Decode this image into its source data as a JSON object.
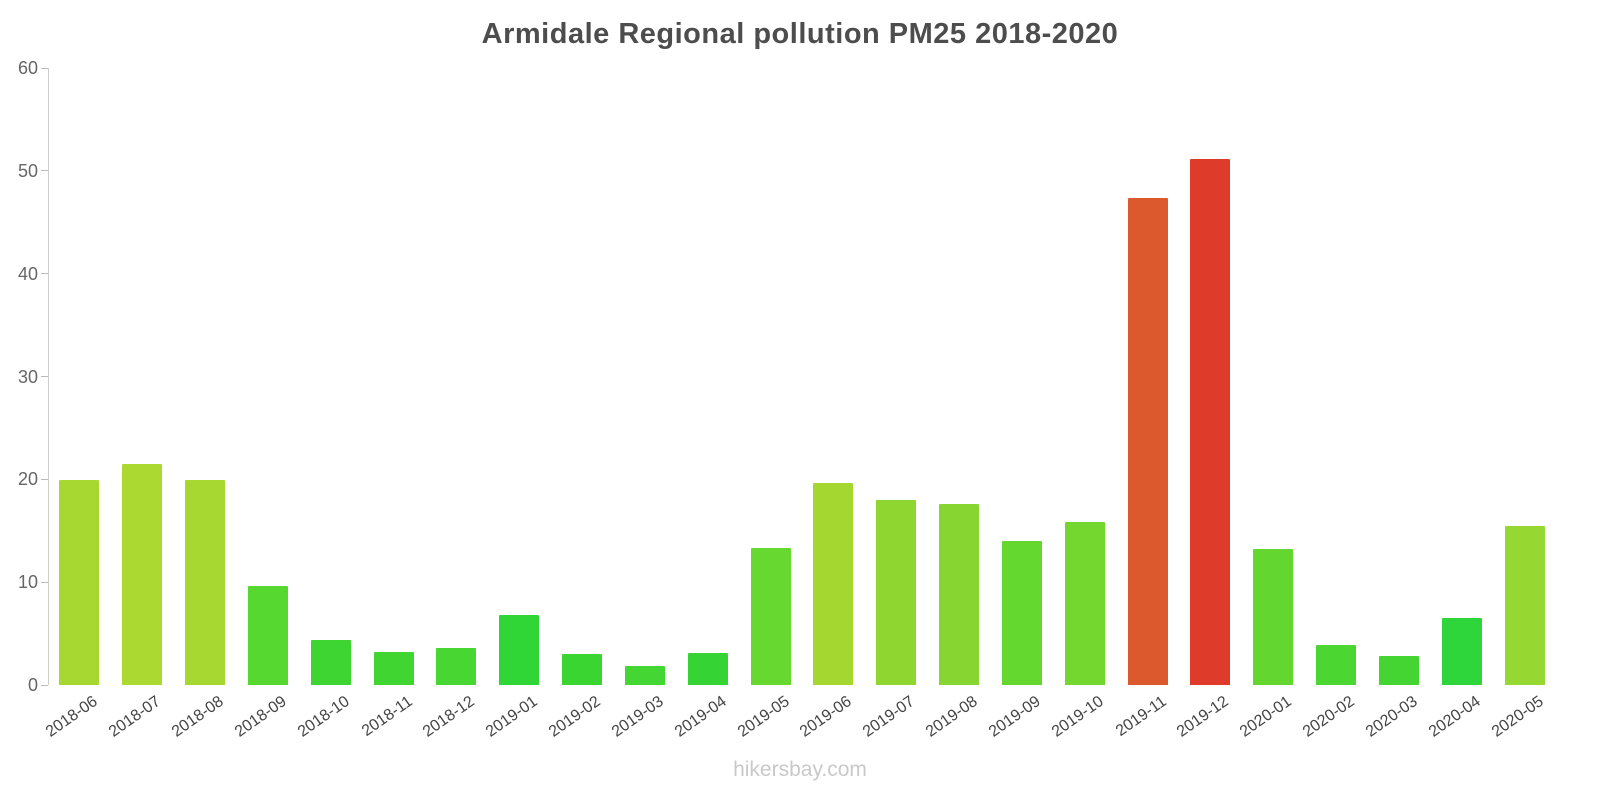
{
  "title": "Armidale Regional pollution PM25 2018-2020",
  "footer": "hikersbay.com",
  "chart_data": {
    "type": "bar",
    "title": "Armidale Regional pollution PM25 2018-2020",
    "xlabel": "",
    "ylabel": "",
    "ylim": [
      0,
      60
    ],
    "yticks": [
      0,
      10,
      20,
      30,
      40,
      50,
      60
    ],
    "grid": false,
    "legend": false,
    "categories": [
      "2018-06",
      "2018-07",
      "2018-08",
      "2018-09",
      "2018-10",
      "2018-11",
      "2018-12",
      "2019-01",
      "2019-02",
      "2019-03",
      "2019-04",
      "2019-05",
      "2019-06",
      "2019-07",
      "2019-08",
      "2019-09",
      "2019-10",
      "2019-11",
      "2019-12",
      "2020-01",
      "2020-02",
      "2020-03",
      "2020-04",
      "2020-05"
    ],
    "values": [
      19.9,
      21.5,
      19.9,
      9.6,
      4.4,
      3.2,
      3.6,
      6.8,
      3.0,
      1.9,
      3.1,
      13.3,
      19.6,
      18.0,
      17.6,
      14.0,
      15.9,
      47.4,
      51.2,
      13.2,
      3.9,
      2.8,
      6.5,
      15.5
    ],
    "colors": [
      "#a6d831",
      "#abd932",
      "#a6d831",
      "#56d830",
      "#3ed431",
      "#41d532",
      "#48d632",
      "#2fd636",
      "#3bd532",
      "#44d632",
      "#35d434",
      "#66d82f",
      "#a4d831",
      "#8fd631",
      "#86d530",
      "#65d82f",
      "#74d730",
      "#dc582d",
      "#de3b2b",
      "#63d72f",
      "#4bd632",
      "#44d532",
      "#2ed63c",
      "#97d731"
    ],
    "axis_color": "#cccccc",
    "tick_label_color": "#666666",
    "x_label_color": "#444444"
  }
}
